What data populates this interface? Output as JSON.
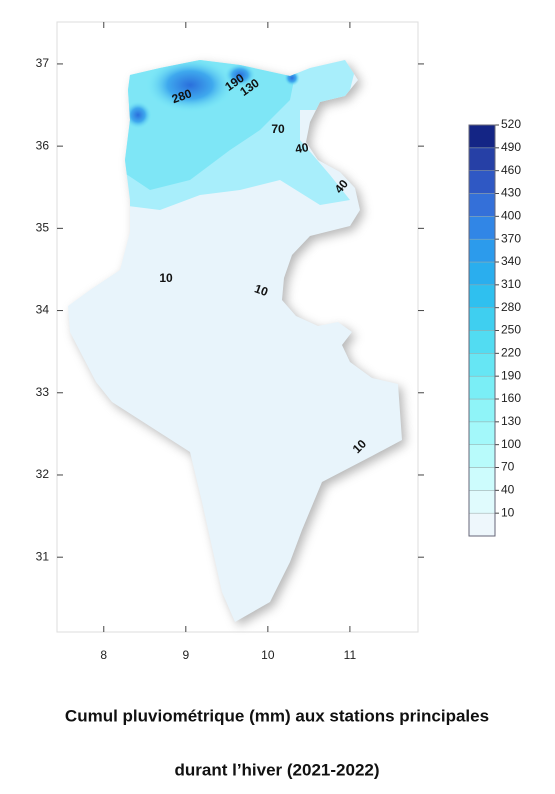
{
  "axes": {
    "xticks": [
      8,
      9,
      10,
      11
    ],
    "yticks": [
      37,
      36,
      35,
      34,
      33,
      32,
      31
    ],
    "xlim": [
      7.43,
      11.83
    ],
    "ylim": [
      30.09,
      37.51
    ]
  },
  "contour_labels": [
    "280",
    "190",
    "130",
    "70",
    "40",
    "40",
    "10",
    "10",
    "10"
  ],
  "colorbar": {
    "levels": [
      10,
      40,
      70,
      100,
      130,
      160,
      190,
      220,
      250,
      280,
      310,
      340,
      370,
      400,
      430,
      460,
      490,
      520
    ],
    "colors": [
      "#eef7fc",
      "#e0fbfd",
      "#cdfcfd",
      "#b8fbfb",
      "#a3f8fa",
      "#8ff4f8",
      "#7aeef6",
      "#66e6f4",
      "#52dcf2",
      "#3fcff0",
      "#2fc0ef",
      "#2aaeee",
      "#2c9bec",
      "#3186e6",
      "#3470d9",
      "#2f58c4",
      "#2640a6",
      "#142585"
    ]
  },
  "caption": {
    "line1": "Cumul pluviométrique (mm) aux stations principales",
    "line2": "durant l’hiver (2021-2022)"
  }
}
